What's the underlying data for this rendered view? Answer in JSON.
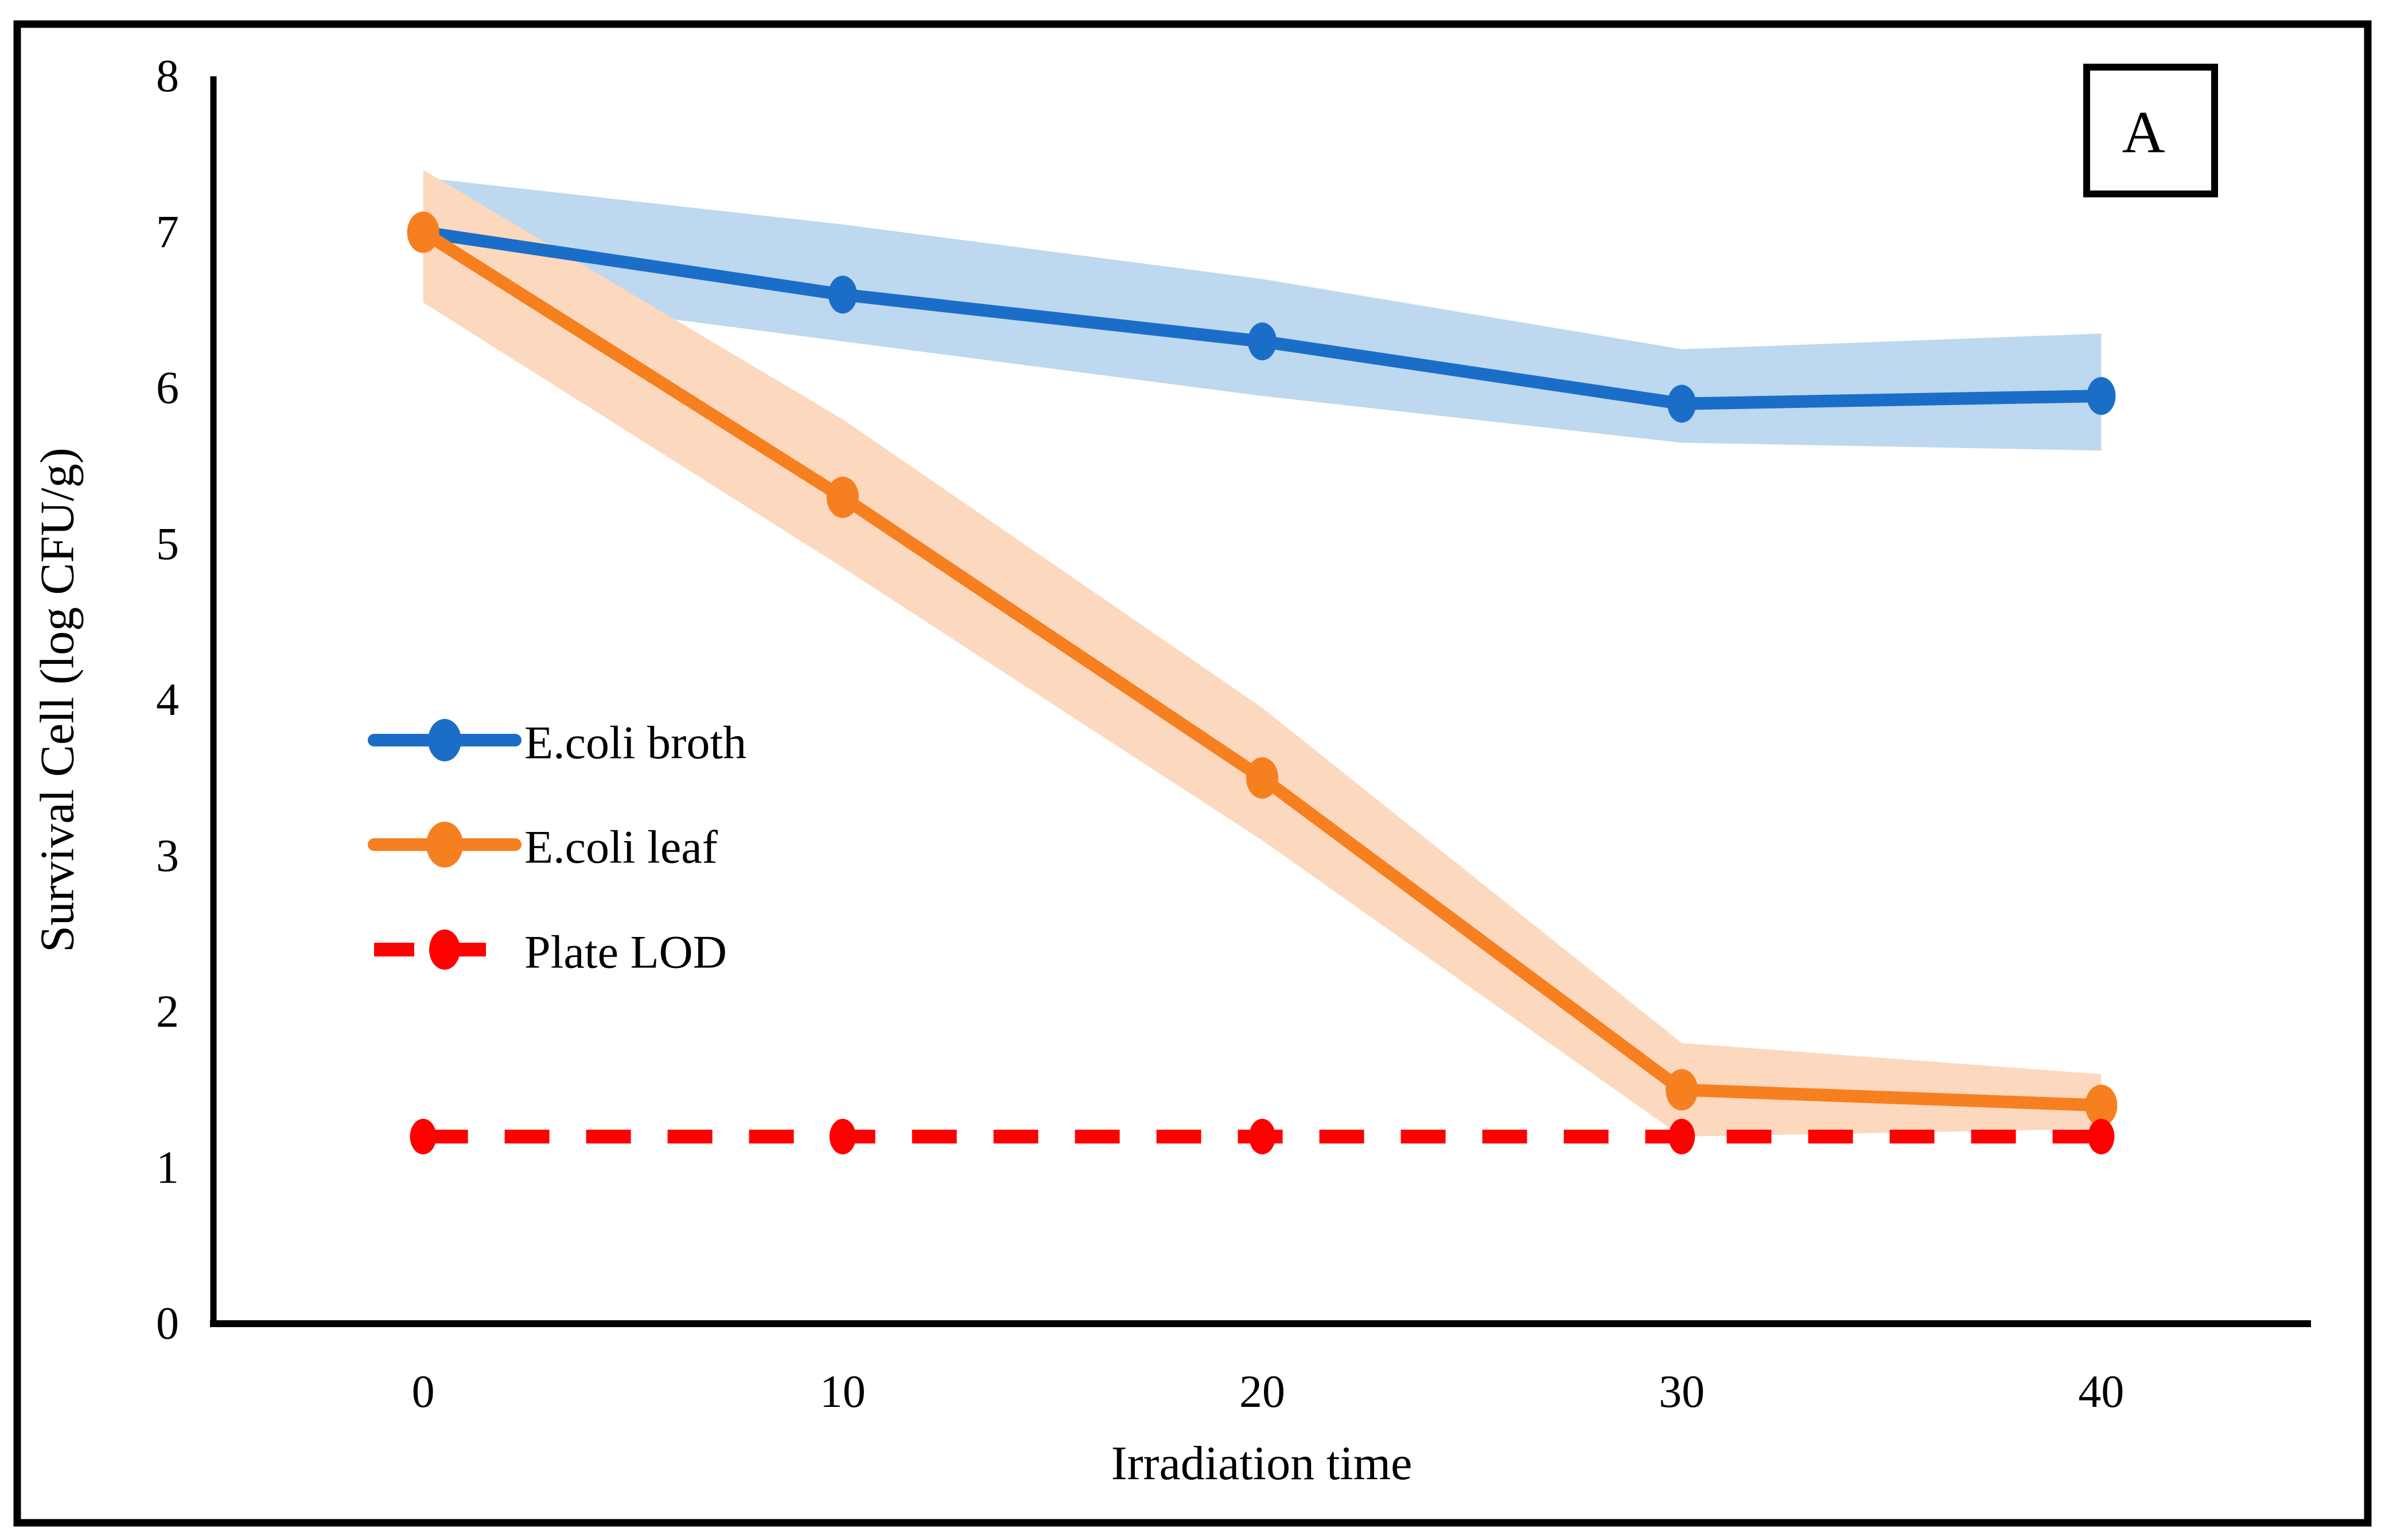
{
  "panel_label": "A",
  "axes": {
    "x_title": "Irradiation time",
    "y_title": "Survival Cell (log CFU/g)",
    "x_tick_labels": [
      "0",
      "10",
      "20",
      "30",
      "40"
    ],
    "y_tick_labels": [
      "0",
      "1",
      "2",
      "3",
      "4",
      "5",
      "6",
      "7",
      "8"
    ]
  },
  "chart_data": {
    "type": "line",
    "title": "",
    "xlabel": "Irradiation time",
    "ylabel": "Survival Cell (log CFU/g)",
    "x": [
      0,
      10,
      20,
      30,
      40
    ],
    "ylim": [
      0,
      8
    ],
    "grid": false,
    "legend_position": "inside-left-middle",
    "series": [
      {
        "name": "E.coli broth",
        "color": "#1B6EC8",
        "band_color": "#BDD8EF",
        "dashed": false,
        "values": [
          7.0,
          6.6,
          6.3,
          5.9,
          5.95
        ],
        "band_upper": [
          7.35,
          7.05,
          6.7,
          6.25,
          6.35
        ],
        "band_lower": [
          6.65,
          6.3,
          5.95,
          5.65,
          5.6
        ]
      },
      {
        "name": "E.coli leaf",
        "color": "#F67F20",
        "band_color": "#FBD8BE",
        "dashed": false,
        "values": [
          7.0,
          5.3,
          3.5,
          1.5,
          1.4
        ],
        "band_upper": [
          7.4,
          5.8,
          3.95,
          1.8,
          1.6
        ],
        "band_lower": [
          6.55,
          4.85,
          3.1,
          1.2,
          1.25
        ]
      },
      {
        "name": "Plate LOD",
        "color": "#FE0000",
        "band_color": null,
        "dashed": true,
        "values": [
          1.2,
          1.2,
          1.2,
          1.2,
          1.2
        ],
        "band_upper": null,
        "band_lower": null
      }
    ]
  }
}
